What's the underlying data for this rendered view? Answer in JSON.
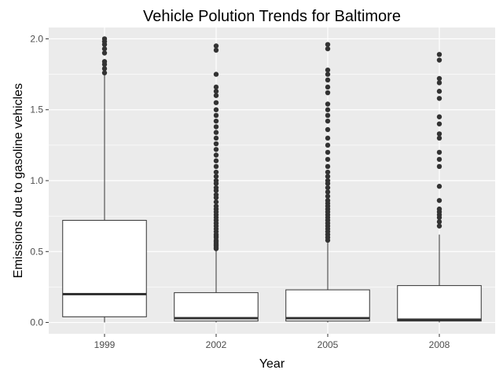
{
  "chart_data": {
    "type": "boxplot",
    "title": "Vehicle Polution Trends for Baltimore",
    "xlabel": "Year",
    "ylabel": "Emissions due to gasoline vehicles",
    "categories": [
      "1999",
      "2002",
      "2005",
      "2008"
    ],
    "ylim": [
      -0.08,
      2.08
    ],
    "yticks": [
      0.0,
      0.5,
      1.0,
      1.5,
      2.0
    ],
    "ytick_labels": [
      "0.0",
      "0.5",
      "1.0",
      "1.5",
      "2.0"
    ],
    "grid": true,
    "boxes": [
      {
        "category": "1999",
        "min": 0.0,
        "q1": 0.04,
        "median": 0.2,
        "q3": 0.72,
        "max": 1.75,
        "outliers": [
          1.76,
          1.79,
          1.82,
          1.84,
          1.9,
          1.93,
          1.96,
          1.98,
          2.0
        ]
      },
      {
        "category": "2002",
        "min": 0.0,
        "q1": 0.01,
        "median": 0.03,
        "q3": 0.21,
        "max": 0.51,
        "outliers": [
          0.52,
          0.53,
          0.54,
          0.55,
          0.56,
          0.57,
          0.58,
          0.6,
          0.61,
          0.62,
          0.64,
          0.66,
          0.68,
          0.7,
          0.72,
          0.74,
          0.76,
          0.78,
          0.8,
          0.82,
          0.85,
          0.88,
          0.9,
          0.93,
          0.95,
          0.98,
          1.0,
          1.03,
          1.06,
          1.1,
          1.14,
          1.18,
          1.22,
          1.26,
          1.3,
          1.34,
          1.38,
          1.42,
          1.46,
          1.5,
          1.55,
          1.6,
          1.63,
          1.66,
          1.75,
          1.92,
          1.95
        ]
      },
      {
        "category": "2005",
        "min": 0.0,
        "q1": 0.01,
        "median": 0.03,
        "q3": 0.23,
        "max": 0.57,
        "outliers": [
          0.58,
          0.6,
          0.62,
          0.64,
          0.66,
          0.68,
          0.7,
          0.72,
          0.74,
          0.76,
          0.78,
          0.8,
          0.82,
          0.84,
          0.86,
          0.89,
          0.92,
          0.95,
          0.98,
          1.0,
          1.03,
          1.06,
          1.1,
          1.15,
          1.2,
          1.25,
          1.3,
          1.36,
          1.42,
          1.46,
          1.5,
          1.54,
          1.62,
          1.66,
          1.71,
          1.75,
          1.78,
          1.93,
          1.96
        ]
      },
      {
        "category": "2008",
        "min": 0.0,
        "q1": 0.01,
        "median": 0.02,
        "q3": 0.26,
        "max": 0.62,
        "outliers": [
          0.68,
          0.71,
          0.74,
          0.76,
          0.78,
          0.8,
          0.86,
          0.96,
          1.1,
          1.15,
          1.2,
          1.3,
          1.33,
          1.4,
          1.45,
          1.58,
          1.63,
          1.69,
          1.72,
          1.85,
          1.89
        ]
      }
    ]
  }
}
